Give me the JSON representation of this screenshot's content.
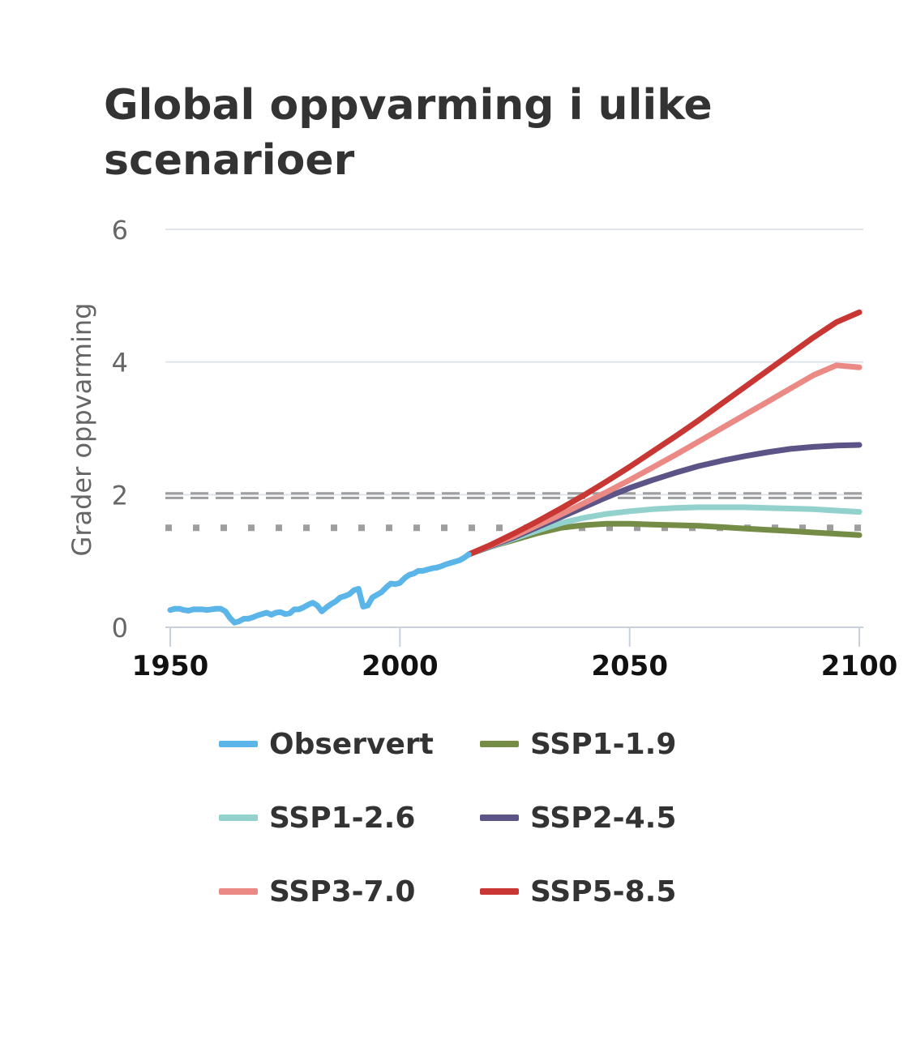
{
  "chart_data": {
    "type": "line",
    "title": "Global oppvarming i ulike scenarioer",
    "ylabel": "Grader oppvarming",
    "xlabel": "",
    "xlim": [
      1950,
      2100
    ],
    "ylim": [
      0,
      6
    ],
    "x_ticks": [
      "1950",
      "2000",
      "2050",
      "2100"
    ],
    "y_ticks": [
      "0",
      "2",
      "4",
      "6"
    ],
    "grid": true,
    "reference_lines": [
      {
        "style": "dashed-double",
        "y": [
          1.95,
          2.02
        ],
        "color": "#9e9e9e"
      },
      {
        "style": "dotted",
        "y": 1.5,
        "color": "#9e9e9e"
      }
    ],
    "legend_position": "bottom",
    "series": [
      {
        "name": "Observert",
        "color": "#5bb5e8",
        "x": [
          1950,
          1951,
          1952,
          1953,
          1954,
          1955,
          1956,
          1957,
          1958,
          1959,
          1960,
          1961,
          1962,
          1963,
          1964,
          1965,
          1966,
          1967,
          1968,
          1969,
          1970,
          1971,
          1972,
          1973,
          1974,
          1975,
          1976,
          1977,
          1978,
          1979,
          1980,
          1981,
          1982,
          1983,
          1984,
          1985,
          1986,
          1987,
          1988,
          1989,
          1990,
          1991,
          1992,
          1993,
          1994,
          1995,
          1996,
          1997,
          1998,
          1999,
          2000,
          2001,
          2002,
          2003,
          2004,
          2005,
          2006,
          2007,
          2008,
          2009,
          2010,
          2011,
          2012,
          2013,
          2014,
          2015
        ],
        "y": [
          0.26,
          0.28,
          0.28,
          0.26,
          0.25,
          0.27,
          0.27,
          0.27,
          0.26,
          0.27,
          0.28,
          0.28,
          0.24,
          0.14,
          0.07,
          0.09,
          0.13,
          0.13,
          0.15,
          0.18,
          0.2,
          0.22,
          0.19,
          0.22,
          0.23,
          0.2,
          0.21,
          0.27,
          0.27,
          0.3,
          0.34,
          0.37,
          0.33,
          0.24,
          0.3,
          0.35,
          0.39,
          0.45,
          0.47,
          0.5,
          0.56,
          0.58,
          0.31,
          0.33,
          0.45,
          0.49,
          0.53,
          0.6,
          0.66,
          0.65,
          0.67,
          0.74,
          0.79,
          0.81,
          0.85,
          0.85,
          0.87,
          0.89,
          0.9,
          0.92,
          0.95,
          0.97,
          0.99,
          1.01,
          1.05,
          1.1
        ]
      },
      {
        "name": "SSP1-1.9",
        "color": "#758c46",
        "x": [
          2015,
          2020,
          2025,
          2030,
          2035,
          2040,
          2045,
          2050,
          2055,
          2060,
          2065,
          2070,
          2075,
          2080,
          2085,
          2090,
          2095,
          2100
        ],
        "y": [
          1.1,
          1.22,
          1.32,
          1.42,
          1.5,
          1.54,
          1.56,
          1.56,
          1.55,
          1.54,
          1.53,
          1.51,
          1.49,
          1.47,
          1.45,
          1.43,
          1.41,
          1.39
        ]
      },
      {
        "name": "SSP1-2.6",
        "color": "#93d1cd",
        "x": [
          2015,
          2020,
          2025,
          2030,
          2035,
          2040,
          2045,
          2050,
          2055,
          2060,
          2065,
          2070,
          2075,
          2080,
          2085,
          2090,
          2095,
          2100
        ],
        "y": [
          1.1,
          1.22,
          1.34,
          1.46,
          1.57,
          1.65,
          1.71,
          1.75,
          1.78,
          1.8,
          1.81,
          1.81,
          1.81,
          1.8,
          1.79,
          1.78,
          1.76,
          1.74
        ]
      },
      {
        "name": "SSP2-4.5",
        "color": "#5c5386",
        "x": [
          2015,
          2020,
          2025,
          2030,
          2035,
          2040,
          2045,
          2050,
          2055,
          2060,
          2065,
          2070,
          2075,
          2080,
          2085,
          2090,
          2095,
          2100
        ],
        "y": [
          1.1,
          1.23,
          1.36,
          1.51,
          1.66,
          1.81,
          1.96,
          2.1,
          2.22,
          2.33,
          2.43,
          2.51,
          2.58,
          2.64,
          2.69,
          2.72,
          2.74,
          2.75
        ]
      },
      {
        "name": "SSP3-7.0",
        "color": "#eb8a85",
        "x": [
          2015,
          2020,
          2025,
          2030,
          2035,
          2040,
          2045,
          2050,
          2055,
          2060,
          2065,
          2070,
          2075,
          2080,
          2085,
          2090,
          2095,
          2100
        ],
        "y": [
          1.1,
          1.24,
          1.38,
          1.54,
          1.7,
          1.87,
          2.04,
          2.22,
          2.41,
          2.6,
          2.8,
          3.0,
          3.2,
          3.4,
          3.6,
          3.8,
          3.95,
          3.92
        ]
      },
      {
        "name": "SSP5-8.5",
        "color": "#c83733",
        "x": [
          2015,
          2020,
          2025,
          2030,
          2035,
          2040,
          2045,
          2050,
          2055,
          2060,
          2065,
          2070,
          2075,
          2080,
          2085,
          2090,
          2095,
          2100
        ],
        "y": [
          1.1,
          1.25,
          1.42,
          1.6,
          1.79,
          1.99,
          2.2,
          2.42,
          2.65,
          2.88,
          3.12,
          3.37,
          3.62,
          3.87,
          4.12,
          4.37,
          4.6,
          4.75
        ]
      }
    ]
  }
}
